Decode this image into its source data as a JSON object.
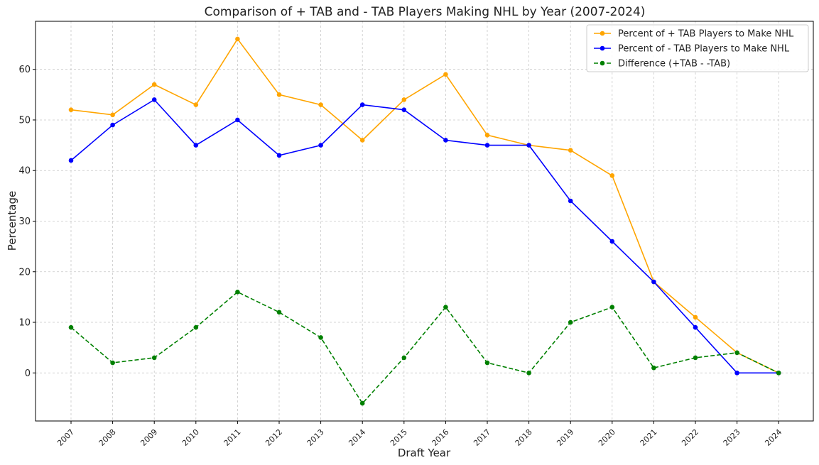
{
  "chart_data": {
    "type": "line",
    "title": "Comparison of + TAB and - TAB Players Making NHL by Year (2007-2024)",
    "xlabel": "Draft Year",
    "ylabel": "Percentage",
    "categories": [
      "2007",
      "2008",
      "2009",
      "2010",
      "2011",
      "2012",
      "2013",
      "2014",
      "2015",
      "2016",
      "2017",
      "2018",
      "2019",
      "2020",
      "2021",
      "2022",
      "2023",
      "2024"
    ],
    "yticks": [
      0,
      10,
      20,
      30,
      40,
      50,
      60
    ],
    "ylim": [
      -9.5,
      69.5
    ],
    "grid": true,
    "legend_position": "top-right",
    "series": [
      {
        "name": "Percent of + TAB Players to Make NHL",
        "color": "#FFA500",
        "dashed": false,
        "values": [
          52,
          51,
          57,
          53,
          66,
          55,
          53,
          46,
          54,
          59,
          47,
          45,
          44,
          39,
          18,
          11,
          4,
          0
        ]
      },
      {
        "name": "Percent of - TAB Players to Make NHL",
        "color": "#0000FF",
        "dashed": false,
        "values": [
          42,
          49,
          54,
          45,
          50,
          43,
          45,
          53,
          52,
          46,
          45,
          45,
          34,
          26,
          18,
          9,
          0,
          0
        ]
      },
      {
        "name": "Difference (+TAB - -TAB)",
        "color": "#008000",
        "dashed": true,
        "values": [
          9,
          2,
          3,
          9,
          16,
          12,
          7,
          -6,
          3,
          13,
          2,
          0,
          10,
          13,
          1,
          3,
          4,
          0
        ]
      }
    ]
  }
}
